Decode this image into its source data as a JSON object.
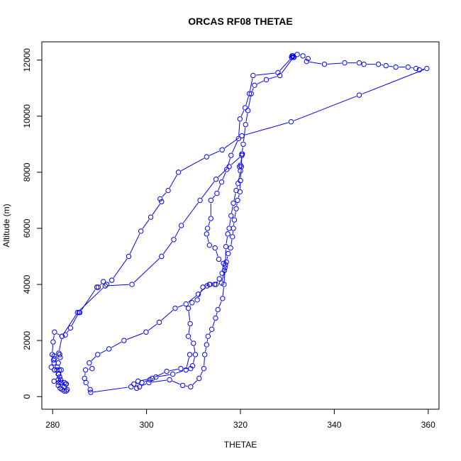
{
  "chart_data": {
    "type": "line",
    "title": "ORCAS RF08 THETAE",
    "xlabel": "THETAE",
    "ylabel": "Altitude (m)",
    "xlim": [
      277.7,
      362.3
    ],
    "ylim": [
      -450,
      12650
    ],
    "x_ticks": [
      280,
      300,
      320,
      340,
      360
    ],
    "y_ticks": [
      0,
      2000,
      4000,
      6000,
      8000,
      10000,
      12000
    ],
    "grid": false,
    "legend": "none",
    "series_color": "#0000ff",
    "marker": "open-circle",
    "series": [
      {
        "points": [
          [
            331.0,
            12150
          ],
          [
            330.9,
            12100
          ],
          [
            331.1,
            12150
          ],
          [
            331.4,
            12100
          ],
          [
            331.2,
            12150
          ],
          [
            332.1,
            12200
          ],
          [
            333.3,
            12150
          ],
          [
            334.4,
            12050
          ],
          [
            334.1,
            11950
          ],
          [
            337.9,
            11850
          ],
          [
            342.2,
            11900
          ],
          [
            345.3,
            11900
          ],
          [
            346.3,
            11850
          ],
          [
            349.4,
            11850
          ],
          [
            351.0,
            11800
          ],
          [
            353.1,
            11750
          ],
          [
            355.7,
            11750
          ],
          [
            357.4,
            11700
          ],
          [
            358.1,
            11650
          ],
          [
            359.7,
            11700
          ],
          [
            345.3,
            10750
          ],
          [
            330.8,
            9800
          ],
          [
            320.3,
            9300
          ],
          [
            316.1,
            8800
          ],
          [
            312.8,
            8550
          ],
          [
            306.8,
            8000
          ],
          [
            304.6,
            7350
          ],
          [
            302.9,
            7050
          ],
          [
            303.2,
            6950
          ],
          [
            300.9,
            6400
          ],
          [
            298.8,
            5900
          ],
          [
            296.2,
            5000
          ],
          [
            292.6,
            4150
          ],
          [
            291.5,
            4000
          ],
          [
            290.8,
            4100
          ],
          [
            289.7,
            3900
          ],
          [
            289.4,
            3900
          ],
          [
            285.8,
            3000
          ],
          [
            285.6,
            3000
          ],
          [
            283.8,
            2450
          ],
          [
            282.7,
            2200
          ],
          [
            282.0,
            2150
          ],
          [
            280.4,
            2300
          ],
          [
            280.1,
            1950
          ],
          [
            279.9,
            1500
          ],
          [
            280.3,
            1450
          ],
          [
            280.4,
            1350
          ],
          [
            280.2,
            1300
          ],
          [
            280.3,
            1200
          ],
          [
            279.7,
            1050
          ],
          [
            280.4,
            950
          ],
          [
            280.9,
            950
          ],
          [
            281.4,
            950
          ],
          [
            281.8,
            950
          ],
          [
            281.3,
            800
          ],
          [
            281.2,
            600
          ],
          [
            280.3,
            550
          ],
          [
            281.3,
            500
          ],
          [
            281.8,
            500
          ],
          [
            281.2,
            400
          ],
          [
            281.6,
            300
          ],
          [
            282.0,
            250
          ],
          [
            282.5,
            200
          ],
          [
            282.9,
            200
          ],
          [
            283.1,
            250
          ],
          [
            282.5,
            350
          ],
          [
            282.8,
            450
          ],
          [
            282.9,
            450
          ],
          [
            282.5,
            500
          ],
          [
            281.7,
            600
          ],
          [
            281.5,
            700
          ],
          [
            281.2,
            800
          ],
          [
            280.4,
            950
          ],
          [
            281.0,
            1050
          ],
          [
            281.2,
            1200
          ],
          [
            281.6,
            1400
          ],
          [
            281.5,
            1500
          ],
          [
            281.3,
            1550
          ],
          [
            282.0,
            2150
          ],
          [
            285.3,
            3000
          ],
          [
            291.2,
            3950
          ],
          [
            296.9,
            4000
          ],
          [
            303.2,
            5000
          ],
          [
            305.8,
            5600
          ],
          [
            307.4,
            6100
          ],
          [
            311.4,
            7000
          ],
          [
            314.8,
            7750
          ],
          [
            317.6,
            8200
          ],
          [
            320.3,
            8600
          ],
          [
            320.4,
            8650
          ],
          [
            320.0,
            8250
          ],
          [
            319.8,
            8200
          ],
          [
            320.0,
            8050
          ],
          [
            319.5,
            7600
          ],
          [
            319.1,
            7350
          ],
          [
            318.5,
            6900
          ],
          [
            318.0,
            6450
          ],
          [
            317.6,
            6000
          ],
          [
            317.3,
            5800
          ],
          [
            316.9,
            5350
          ],
          [
            316.8,
            4700
          ],
          [
            316.5,
            4000
          ],
          [
            316.2,
            3500
          ],
          [
            315.2,
            3100
          ],
          [
            314.7,
            2800
          ],
          [
            313.9,
            2400
          ],
          [
            313.1,
            2150
          ],
          [
            312.8,
            1850
          ],
          [
            312.4,
            1500
          ],
          [
            312.2,
            1000
          ],
          [
            311.2,
            650
          ],
          [
            309.4,
            350
          ],
          [
            307.7,
            400
          ],
          [
            304.9,
            600
          ],
          [
            300.5,
            500
          ],
          [
            298.5,
            350
          ],
          [
            297.9,
            300
          ],
          [
            296.7,
            350
          ],
          [
            288.1,
            150
          ],
          [
            288.0,
            250
          ],
          [
            287.1,
            500
          ],
          [
            286.8,
            650
          ],
          [
            287.0,
            950
          ],
          [
            288.4,
            1000
          ],
          [
            287.8,
            1200
          ],
          [
            289.6,
            1500
          ],
          [
            292.0,
            1700
          ],
          [
            295.2,
            2000
          ],
          [
            299.9,
            2300
          ],
          [
            302.7,
            2650
          ],
          [
            306.1,
            3150
          ],
          [
            308.4,
            3300
          ],
          [
            311.0,
            3650
          ],
          [
            312.9,
            3950
          ],
          [
            313.4,
            4000
          ],
          [
            314.8,
            4000
          ],
          [
            316.0,
            4050
          ],
          [
            316.6,
            4500
          ],
          [
            316.4,
            4750
          ],
          [
            315.4,
            4900
          ],
          [
            314.6,
            5300
          ],
          [
            313.4,
            5400
          ],
          [
            312.8,
            5800
          ],
          [
            313.0,
            6000
          ],
          [
            313.7,
            6350
          ],
          [
            313.7,
            7000
          ],
          [
            315.0,
            7250
          ],
          [
            316.0,
            7650
          ],
          [
            317.1,
            8100
          ],
          [
            318.0,
            8600
          ],
          [
            319.6,
            9200
          ],
          [
            319.9,
            9900
          ],
          [
            321.0,
            10300
          ],
          [
            321.9,
            10800
          ],
          [
            322.7,
            11450
          ],
          [
            328.0,
            11550
          ],
          [
            331.0,
            12100
          ]
        ]
      },
      {
        "points": [
          [
            309.2,
            1500
          ],
          [
            308.4,
            950
          ],
          [
            305.6,
            800
          ],
          [
            302.0,
            700
          ],
          [
            300.7,
            600
          ],
          [
            299.0,
            500
          ],
          [
            297.3,
            450
          ],
          [
            298.2,
            550
          ],
          [
            301.2,
            650
          ],
          [
            304.3,
            900
          ],
          [
            307.3,
            1000
          ],
          [
            309.4,
            1000
          ],
          [
            309.8,
            1100
          ],
          [
            310.4,
            1500
          ],
          [
            310.0,
            1900
          ],
          [
            308.9,
            2150
          ],
          [
            309.3,
            2600
          ],
          [
            308.9,
            3150
          ],
          [
            309.7,
            3350
          ],
          [
            310.8,
            3450
          ],
          [
            312.0,
            3900
          ],
          [
            313.5,
            4000
          ],
          [
            314.5,
            4000
          ],
          [
            315.5,
            4200
          ],
          [
            316.1,
            4400
          ],
          [
            316.7,
            4600
          ],
          [
            317.0,
            4800
          ],
          [
            317.4,
            5100
          ],
          [
            317.9,
            5300
          ],
          [
            318.3,
            5700
          ],
          [
            318.5,
            6000
          ],
          [
            318.7,
            6300
          ],
          [
            319.1,
            6700
          ],
          [
            319.4,
            7000
          ],
          [
            319.9,
            7300
          ],
          [
            320.0,
            7700
          ],
          [
            320.2,
            8200
          ],
          [
            320.3,
            8650
          ],
          [
            320.6,
            9000
          ],
          [
            321.1,
            9700
          ],
          [
            321.6,
            10200
          ],
          [
            322.3,
            10800
          ],
          [
            323.0,
            11100
          ],
          [
            325.5,
            11300
          ],
          [
            328.4,
            11450
          ],
          [
            331.3,
            12100
          ]
        ]
      }
    ]
  }
}
